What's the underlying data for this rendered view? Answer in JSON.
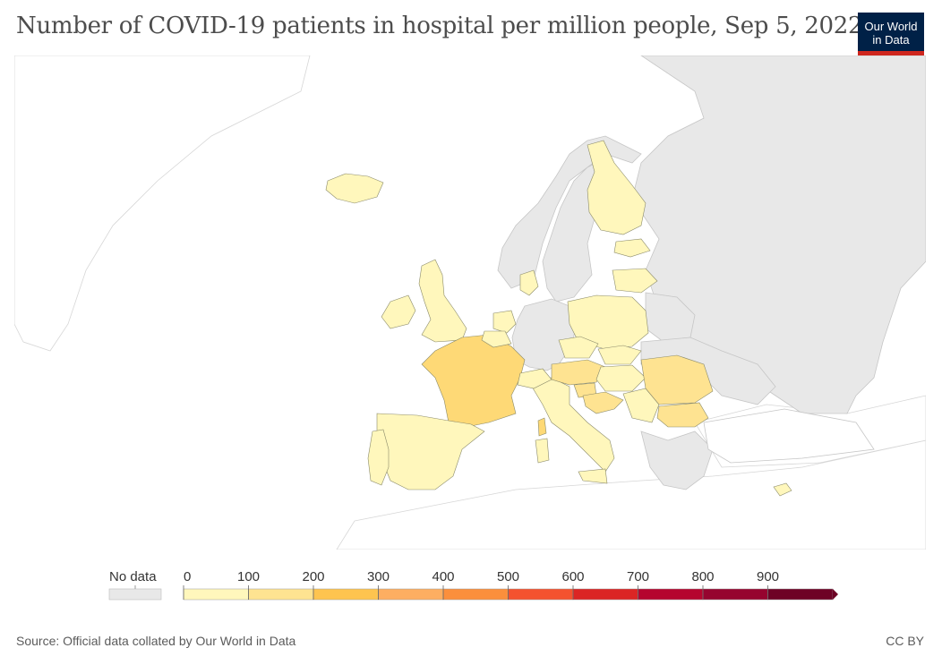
{
  "title": "Number of COVID-19 patients in hospital per million people, Sep 5, 2022",
  "logo": {
    "line1": "Our World",
    "line2": "in Data"
  },
  "colors": {
    "no_data": "#e8e8e8",
    "background_land": "#ffffff",
    "border": "#cfcfcf",
    "bins": [
      "#fff7bc",
      "#fee391",
      "#fec44f",
      "#fdae61",
      "#fb8f3c",
      "#f4522f",
      "#db2524",
      "#b5052e",
      "#96042f",
      "#6e0326"
    ]
  },
  "legend": {
    "no_data_label": "No data",
    "ticks": [
      "0",
      "100",
      "200",
      "300",
      "400",
      "500",
      "600",
      "700",
      "800",
      "900"
    ]
  },
  "regions": [
    {
      "name": "Iceland",
      "bin": 0
    },
    {
      "name": "Ireland",
      "bin": 0
    },
    {
      "name": "United Kingdom",
      "bin": 0
    },
    {
      "name": "France",
      "bin": 2
    },
    {
      "name": "Spain",
      "bin": 0
    },
    {
      "name": "Portugal",
      "bin": 0
    },
    {
      "name": "Italy",
      "bin": 0
    },
    {
      "name": "Switzerland",
      "bin": 0
    },
    {
      "name": "Austria",
      "bin": 1
    },
    {
      "name": "Netherlands",
      "bin": 0
    },
    {
      "name": "Belgium",
      "bin": 0
    },
    {
      "name": "Denmark",
      "bin": 0
    },
    {
      "name": "Finland",
      "bin": 0
    },
    {
      "name": "Estonia",
      "bin": 0
    },
    {
      "name": "Latvia",
      "bin": 0
    },
    {
      "name": "Poland",
      "bin": 0
    },
    {
      "name": "Czechia",
      "bin": 0
    },
    {
      "name": "Slovakia",
      "bin": 0
    },
    {
      "name": "Hungary",
      "bin": 0
    },
    {
      "name": "Slovenia",
      "bin": 1
    },
    {
      "name": "Croatia",
      "bin": 1
    },
    {
      "name": "Serbia",
      "bin": 0
    },
    {
      "name": "Romania",
      "bin": 1
    },
    {
      "name": "Bulgaria",
      "bin": 1
    },
    {
      "name": "Cyprus",
      "bin": 0
    },
    {
      "name": "Norway",
      "bin": null
    },
    {
      "name": "Sweden",
      "bin": null
    },
    {
      "name": "Germany",
      "bin": null
    },
    {
      "name": "Russia",
      "bin": null
    },
    {
      "name": "Belarus",
      "bin": null
    },
    {
      "name": "Ukraine",
      "bin": null
    },
    {
      "name": "Balkans",
      "bin": null
    }
  ],
  "source": "Source: Official data collated by Our World in Data",
  "license": "CC BY"
}
